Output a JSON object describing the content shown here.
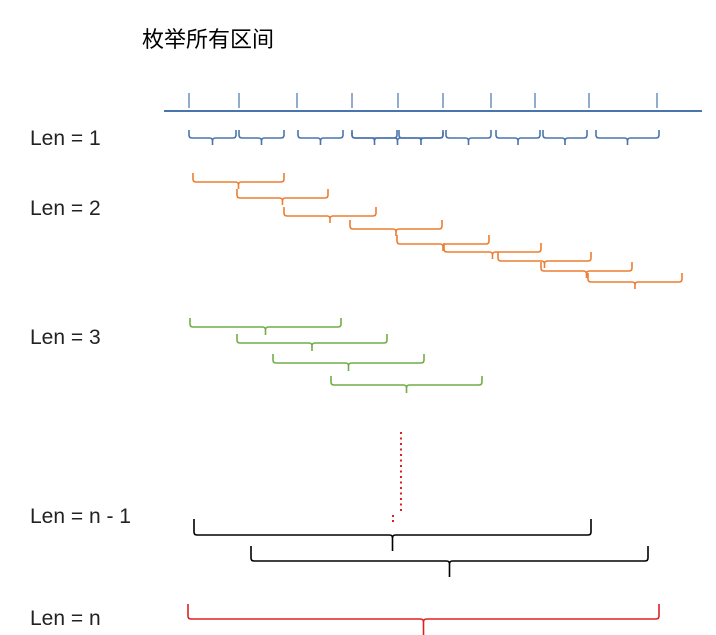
{
  "title": "枚举所有区间",
  "colors": {
    "axis": "#4A74AC",
    "len1": "#4A74AC",
    "len2": "#ED7D31",
    "len3": "#70AD47",
    "ellipsis": "#E02020",
    "len_n_minus_1": "#000000",
    "len_n": "#E02020"
  },
  "rows": [
    {
      "label": "Len = 1",
      "color_key": "len1",
      "bracket_count": 10
    },
    {
      "label": "Len = 2",
      "color_key": "len2",
      "bracket_count": 10
    },
    {
      "label": "Len = 3",
      "color_key": "len3",
      "bracket_count": 4
    },
    {
      "label": "Len = n - 1",
      "color_key": "len_n_minus_1",
      "bracket_count": 2
    },
    {
      "label": "Len = n",
      "color_key": "len_n",
      "bracket_count": 1
    }
  ],
  "axis": {
    "tick_count": 10
  }
}
